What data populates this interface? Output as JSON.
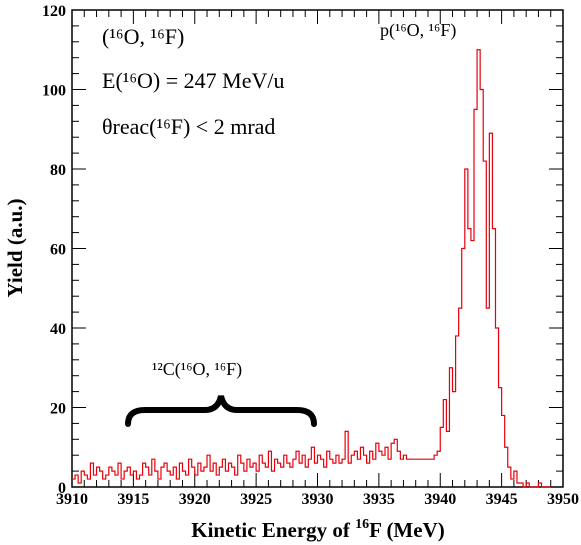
{
  "chart_data": {
    "type": "histogram",
    "xlabel_prefix": "Kinetic Energy of ",
    "xlabel_sup": "16",
    "xlabel_suffix": "F (MeV)",
    "ylabel": "Yield (a.u.)",
    "xlim": [
      3910,
      3950
    ],
    "ylim": [
      0,
      120
    ],
    "x_ticks": [
      "3910",
      "3915",
      "3920",
      "3925",
      "3930",
      "3935",
      "3940",
      "3945",
      "3950"
    ],
    "y_ticks": [
      "0",
      "20",
      "40",
      "60",
      "80",
      "100",
      "120"
    ],
    "line_color": "#e8000b",
    "bin_width": 0.25,
    "bin_start": 3910,
    "values": [
      2,
      3,
      1,
      4,
      3,
      2,
      6,
      3,
      5,
      4,
      2,
      3,
      5,
      4,
      3,
      6,
      2,
      4,
      5,
      3,
      4,
      2,
      3,
      6,
      5,
      3,
      7,
      4,
      2,
      5,
      6,
      4,
      3,
      5,
      2,
      6,
      4,
      3,
      7,
      5,
      3,
      6,
      4,
      5,
      8,
      4,
      6,
      3,
      5,
      7,
      4,
      6,
      5,
      3,
      8,
      6,
      4,
      7,
      5,
      6,
      4,
      8,
      6,
      5,
      9,
      4,
      7,
      6,
      5,
      8,
      6,
      5,
      7,
      9,
      6,
      8,
      5,
      7,
      10,
      6,
      8,
      7,
      5,
      9,
      7,
      6,
      8,
      6,
      7,
      14,
      6,
      8,
      9,
      7,
      10,
      8,
      6,
      9,
      7,
      11,
      9,
      8,
      10,
      7,
      11,
      12,
      9,
      7,
      8,
      7,
      7,
      7,
      7,
      7,
      7,
      7,
      7,
      7,
      8,
      9,
      15,
      22,
      14,
      30,
      24,
      38,
      45,
      60,
      80,
      65,
      62,
      95,
      110,
      100,
      82,
      45,
      89,
      65,
      40,
      25,
      18,
      10,
      5,
      2,
      4,
      1,
      1,
      0,
      1,
      0,
      0,
      0,
      1,
      0,
      0,
      0
    ],
    "annotations": {
      "reaction": "(¹⁶O, ¹⁶F)",
      "beam_energy": "E(¹⁶O) = 247 MeV/u",
      "angle_cut": "θreac(¹⁶F) < 2 mrad",
      "peak_label": "p(¹⁶O, ¹⁶F)",
      "carbon_label": "¹²C(¹⁶O, ¹⁶F)"
    }
  }
}
